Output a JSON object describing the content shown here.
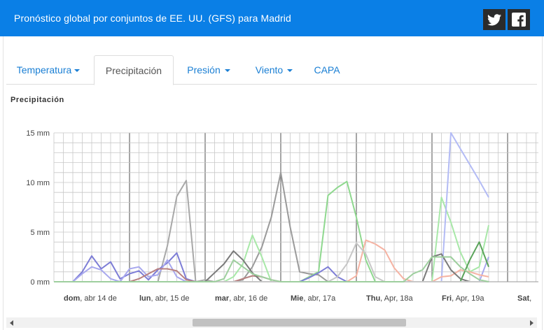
{
  "header": {
    "title": "Pronóstico global por conjuntos de EE. UU. (GFS) para Madrid",
    "social": [
      {
        "name": "twitter-icon"
      },
      {
        "name": "facebook-icon"
      }
    ]
  },
  "tabs": [
    {
      "label": "Temperatura",
      "dropdown": true,
      "active": false
    },
    {
      "label": "Precipitación",
      "dropdown": false,
      "active": true
    },
    {
      "label": "Presión",
      "dropdown": true,
      "active": false
    },
    {
      "label": "Viento",
      "dropdown": true,
      "active": false
    },
    {
      "label": "CAPA",
      "dropdown": false,
      "active": false
    }
  ],
  "colors": {
    "header_bg": "#0a7fe6",
    "link": "#1a7fd4",
    "grid": "#c8c8c8",
    "major_grid": "#6b6b6b"
  },
  "chart_data": {
    "type": "line",
    "title": "Precipitación",
    "yunit": "mm",
    "ylim": [
      0,
      15
    ],
    "yticks": [
      {
        "value": 0,
        "label": "0 mm"
      },
      {
        "value": 5,
        "label": "5 mm"
      },
      {
        "value": 10,
        "label": "10 mm"
      },
      {
        "value": 15,
        "label": "15 mm"
      }
    ],
    "x_step_hours": 6,
    "x_count": 47,
    "day_labels": [
      {
        "bold": "dom",
        "rest": ", abr 14 de",
        "index": 0
      },
      {
        "bold": "lun",
        "rest": ", abr, 15 de",
        "index": 8
      },
      {
        "bold": "mar",
        "rest": ", abr, 16 de",
        "index": 16
      },
      {
        "bold": "Mie",
        "rest": ", abr, 17a",
        "index": 24
      },
      {
        "bold": "Thu",
        "rest": ", Apr, 18a",
        "index": 32
      },
      {
        "bold": "Fri",
        "rest": ", Apr, 19a",
        "index": 40
      },
      {
        "bold": "Sat",
        "rest": ",",
        "index": 48
      }
    ],
    "grid": true,
    "series": [
      {
        "color": "#a8a8a8",
        "values": [
          0,
          0,
          0,
          0,
          0,
          0,
          0,
          0,
          0,
          0,
          0,
          0,
          3.6,
          8.6,
          10.2,
          0,
          0.2,
          0,
          0,
          0,
          0,
          0,
          0,
          0,
          0,
          0,
          0,
          0,
          0,
          0,
          0,
          0,
          0,
          0,
          0,
          0,
          0,
          0,
          0,
          0,
          0,
          0,
          0,
          0,
          0,
          0,
          0
        ]
      },
      {
        "color": "#9a9a9a",
        "values": [
          0,
          0,
          0,
          0,
          0,
          0,
          0,
          0,
          0,
          0,
          0,
          0,
          0,
          0,
          0,
          0,
          0,
          0,
          0,
          0,
          0.2,
          1.5,
          3.5,
          6.5,
          11,
          5.5,
          1,
          0.8,
          0.7,
          0,
          0,
          0,
          0,
          0,
          0,
          0,
          0,
          0,
          0,
          0,
          0,
          0,
          0,
          0,
          0,
          0,
          0
        ]
      },
      {
        "color": "#8fd88f",
        "values": [
          0,
          0,
          0,
          0,
          0,
          0,
          0,
          0,
          0,
          0,
          0,
          0,
          0,
          0,
          0,
          0,
          0,
          0,
          0,
          0,
          0,
          0,
          0,
          0,
          0,
          0,
          0,
          0.5,
          1,
          8.7,
          9.5,
          10.1,
          6.5,
          2.2,
          0,
          0,
          0,
          0,
          0,
          0,
          0,
          0,
          0,
          0,
          0,
          0,
          0
        ]
      },
      {
        "color": "#a8e8a8",
        "values": [
          0,
          0,
          0,
          0,
          0,
          0,
          0,
          0,
          0,
          0,
          0,
          0,
          0,
          0,
          0,
          0,
          0,
          0,
          0,
          0.5,
          1.8,
          4.7,
          2.5,
          0,
          0,
          0,
          0,
          0,
          0,
          0,
          0,
          0,
          0,
          0,
          0,
          0,
          0,
          0,
          0,
          0,
          0,
          8.5,
          6,
          3,
          1,
          1.5,
          5.7
        ]
      },
      {
        "color": "#b3bbf5",
        "values": [
          0,
          0,
          0,
          0,
          0,
          0,
          0,
          0,
          0,
          0,
          0,
          0,
          0,
          0,
          0,
          0,
          0,
          0,
          0,
          0,
          0,
          0,
          0,
          0,
          0,
          0,
          0,
          0,
          0,
          0,
          0,
          0,
          0,
          0,
          0,
          0,
          0,
          0,
          0,
          0,
          0,
          0,
          15,
          13.4,
          11.8,
          10.2,
          8.5
        ]
      },
      {
        "color": "#7d7dd6",
        "values": [
          0,
          0,
          0,
          1,
          2.6,
          1.3,
          2,
          0.3,
          0.8,
          1.1,
          0.2,
          1.2,
          1.9,
          2.9,
          0.3,
          0,
          0,
          0,
          0,
          0,
          0,
          0,
          0,
          0,
          0,
          0,
          0,
          0.4,
          0.9,
          1.5,
          0.5,
          0,
          0,
          0,
          0,
          0,
          0,
          0,
          0,
          0,
          0,
          0,
          0,
          0,
          0,
          0,
          0
        ]
      },
      {
        "color": "#a8a8ee",
        "values": [
          0,
          0,
          0,
          0.8,
          1.5,
          1.2,
          0.3,
          0,
          1.3,
          1.5,
          0.5,
          0.7,
          2.2,
          0.5,
          0,
          0,
          0,
          0,
          0,
          0,
          0,
          0,
          0,
          0,
          0,
          0,
          0,
          0,
          0,
          0,
          0,
          0,
          0,
          0,
          0,
          0,
          0,
          0,
          0,
          0,
          0,
          0,
          0,
          0,
          0,
          0,
          2.5
        ]
      },
      {
        "color": "#f5b3a3",
        "values": [
          0,
          0,
          0,
          0,
          0,
          0,
          0,
          0,
          0,
          0,
          0,
          0,
          0,
          0,
          0,
          0,
          0,
          0,
          0,
          0,
          0,
          0,
          0,
          0,
          0,
          0,
          0,
          0,
          0,
          0,
          0,
          0,
          0.6,
          4.2,
          3.8,
          3.2,
          1.4,
          0.3,
          0,
          0,
          0,
          0.5,
          0.6,
          1.2,
          1,
          0.7,
          0.5
        ]
      },
      {
        "color": "#b88080",
        "values": [
          0,
          0,
          0,
          0,
          0,
          0,
          0,
          0,
          0,
          0.3,
          0.8,
          1.3,
          1.3,
          1.1,
          0.2,
          0,
          0,
          0,
          0,
          0,
          0.3,
          0.6,
          0.5,
          0.2,
          0,
          0,
          0,
          0,
          0,
          0,
          0,
          0,
          0,
          0,
          0,
          0,
          0,
          0,
          0,
          0,
          0,
          0,
          0,
          0,
          0,
          0,
          0
        ]
      },
      {
        "color": "#7a7a7a",
        "values": [
          0,
          0,
          0,
          0,
          0,
          0,
          0,
          0,
          0,
          0,
          0,
          0,
          0,
          0,
          0,
          0,
          0,
          0.9,
          1.8,
          3.1,
          2.2,
          0.9,
          0,
          0,
          0,
          0,
          0,
          0,
          0,
          0,
          0,
          0,
          0,
          0,
          0,
          0,
          0,
          0,
          0,
          0,
          2.5,
          2.8,
          1.2,
          0.3,
          0,
          0,
          0
        ]
      },
      {
        "color": "#5aa35a",
        "values": [
          0,
          0,
          0,
          0,
          0,
          0,
          0,
          0,
          0,
          0,
          0,
          0,
          0,
          0,
          0,
          0,
          0,
          0,
          0,
          0,
          0,
          0,
          0,
          0,
          0,
          0,
          0,
          0,
          0,
          0,
          0,
          0,
          0,
          0,
          0,
          0,
          0,
          0,
          0,
          0,
          0,
          0,
          0,
          0,
          2.2,
          4,
          1.5
        ]
      },
      {
        "color": "#c7c7c7",
        "values": [
          0,
          0,
          0,
          0,
          0,
          0,
          0,
          0,
          0,
          0,
          0,
          0,
          0,
          0,
          0,
          0,
          0,
          0,
          0,
          0,
          0,
          0,
          0,
          0,
          0,
          0,
          0,
          0,
          0,
          0,
          0.5,
          1.8,
          3.9,
          2.8,
          0.5,
          0,
          0,
          0,
          0,
          0,
          0,
          0,
          0,
          0,
          0,
          0,
          0
        ]
      },
      {
        "color": "#9ecf9e",
        "values": [
          0,
          0,
          0,
          0,
          0,
          0,
          0,
          0,
          0,
          0,
          0,
          0,
          0,
          0,
          0,
          0,
          0,
          0,
          0.3,
          2.2,
          1.5,
          0.8,
          0.5,
          0.2,
          0,
          0,
          0,
          0,
          0,
          0,
          0,
          0,
          0,
          0,
          0,
          0,
          0,
          0,
          0.8,
          1.2,
          2.5,
          2.5,
          2.5,
          1.5,
          0.8,
          0.2,
          0
        ]
      }
    ]
  },
  "scrollbar": {
    "thumb_fraction_start": 0.35,
    "thumb_fraction_size": 0.41
  }
}
